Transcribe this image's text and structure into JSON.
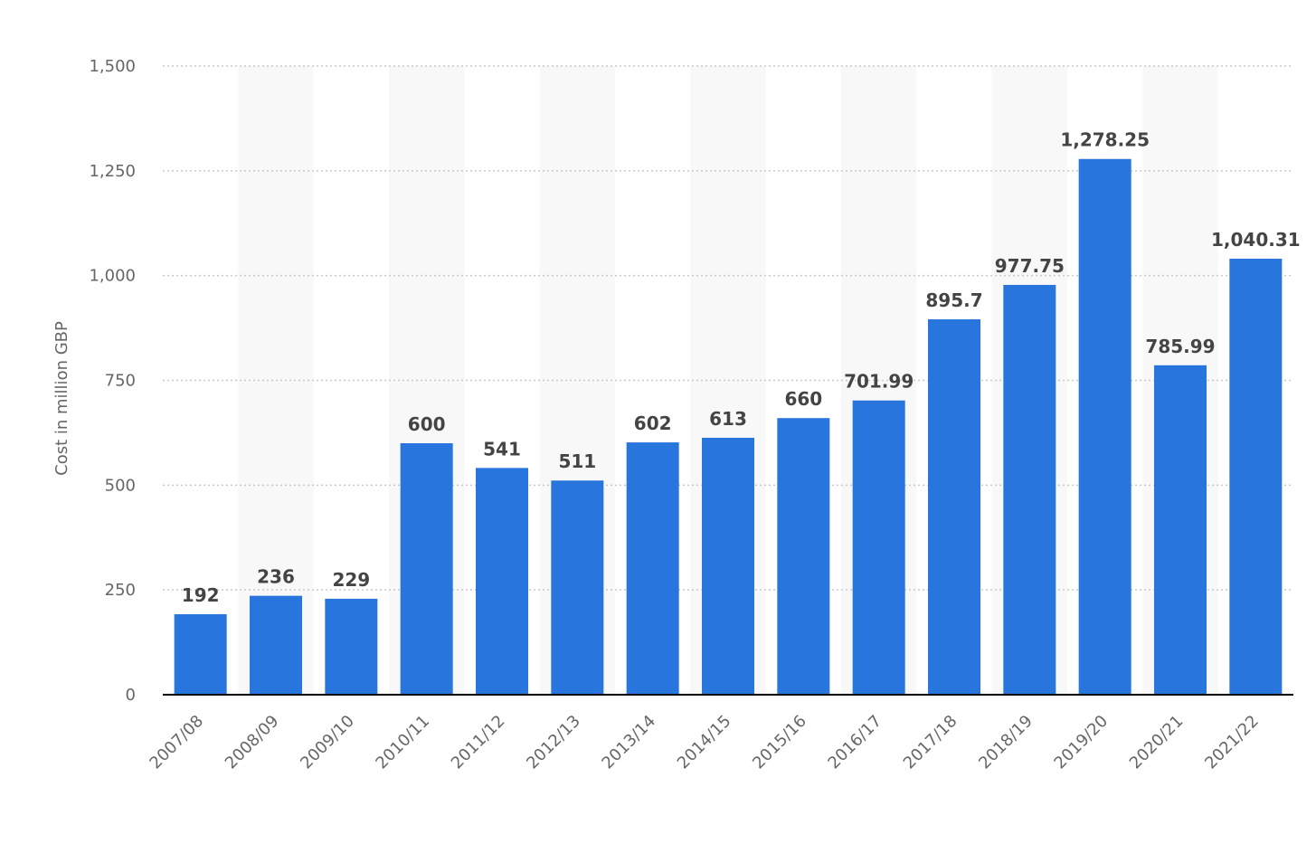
{
  "chart_data": {
    "type": "bar",
    "categories": [
      "2007/08",
      "2008/09",
      "2009/10",
      "2010/11",
      "2011/12",
      "2012/13",
      "2013/14",
      "2014/15",
      "2015/16",
      "2016/17",
      "2017/18",
      "2018/19",
      "2019/20",
      "2020/21",
      "2021/22"
    ],
    "values": [
      192,
      236,
      229,
      600,
      541,
      511,
      602,
      613,
      660,
      701.99,
      895.7,
      977.75,
      1278.25,
      785.99,
      1040.31
    ],
    "value_labels": [
      "192",
      "236",
      "229",
      "600",
      "541",
      "511",
      "602",
      "613",
      "660",
      "701.99",
      "895.7",
      "977.75",
      "1,278.25",
      "785.99",
      "1,040.31"
    ],
    "ylabel": "Cost in million GBP",
    "xlabel": "",
    "ylim": [
      0,
      1500
    ],
    "yticks": [
      0,
      250,
      500,
      750,
      1000,
      1250,
      1500
    ],
    "ytick_labels": [
      "0",
      "250",
      "500",
      "750",
      "1,000",
      "1,250",
      "1,500"
    ],
    "grid": true,
    "legend": "none",
    "colors": {
      "bar": "#2876dd",
      "band": "#f8f8f8",
      "grid": "#c8c8c8",
      "axis": "#000000"
    }
  }
}
